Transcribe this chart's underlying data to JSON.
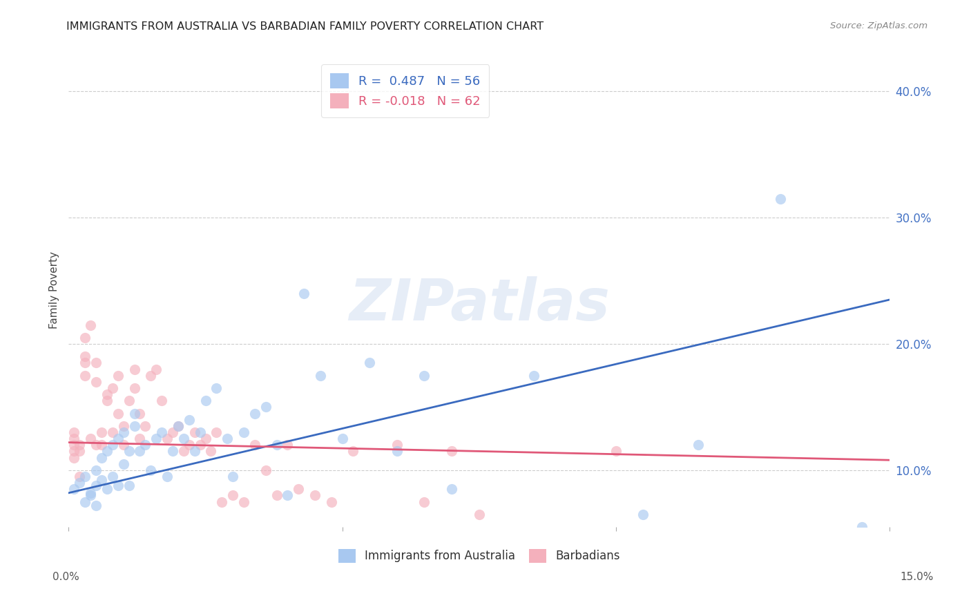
{
  "title": "IMMIGRANTS FROM AUSTRALIA VS BARBADIAN FAMILY POVERTY CORRELATION CHART",
  "source": "Source: ZipAtlas.com",
  "ylabel": "Family Poverty",
  "xlim": [
    0.0,
    0.15
  ],
  "ylim": [
    0.055,
    0.43
  ],
  "legend_1_label": "R =  0.487   N = 56",
  "legend_2_label": "R = -0.018   N = 62",
  "legend_1_series": "Immigrants from Australia",
  "legend_2_series": "Barbadians",
  "blue_color": "#a8c8f0",
  "pink_color": "#f4b0bc",
  "blue_line_color": "#3a6abf",
  "pink_line_color": "#e05878",
  "watermark": "ZIPatlas",
  "blue_line_x": [
    0.0,
    0.15
  ],
  "blue_line_y": [
    0.082,
    0.235
  ],
  "pink_line_x": [
    0.0,
    0.15
  ],
  "pink_line_y": [
    0.122,
    0.108
  ],
  "y_tick_positions": [
    0.1,
    0.2,
    0.3,
    0.4
  ],
  "y_tick_labels_right": [
    "10.0%",
    "20.0%",
    "30.0%",
    "40.0%"
  ],
  "x_tick_positions": [
    0.0,
    0.05,
    0.1,
    0.15
  ],
  "blue_x": [
    0.001,
    0.002,
    0.003,
    0.003,
    0.004,
    0.004,
    0.005,
    0.005,
    0.005,
    0.006,
    0.006,
    0.007,
    0.007,
    0.008,
    0.008,
    0.009,
    0.009,
    0.01,
    0.01,
    0.011,
    0.011,
    0.012,
    0.012,
    0.013,
    0.014,
    0.015,
    0.016,
    0.017,
    0.018,
    0.019,
    0.02,
    0.021,
    0.022,
    0.023,
    0.024,
    0.025,
    0.027,
    0.029,
    0.03,
    0.032,
    0.034,
    0.036,
    0.038,
    0.04,
    0.043,
    0.046,
    0.05,
    0.055,
    0.06,
    0.065,
    0.07,
    0.085,
    0.105,
    0.115,
    0.13,
    0.145
  ],
  "blue_y": [
    0.085,
    0.09,
    0.075,
    0.095,
    0.082,
    0.08,
    0.088,
    0.072,
    0.1,
    0.092,
    0.11,
    0.085,
    0.115,
    0.12,
    0.095,
    0.088,
    0.125,
    0.105,
    0.13,
    0.115,
    0.088,
    0.145,
    0.135,
    0.115,
    0.12,
    0.1,
    0.125,
    0.13,
    0.095,
    0.115,
    0.135,
    0.125,
    0.14,
    0.115,
    0.13,
    0.155,
    0.165,
    0.125,
    0.095,
    0.13,
    0.145,
    0.15,
    0.12,
    0.08,
    0.24,
    0.175,
    0.125,
    0.185,
    0.115,
    0.175,
    0.085,
    0.175,
    0.065,
    0.12,
    0.315,
    0.055
  ],
  "pink_x": [
    0.001,
    0.001,
    0.001,
    0.001,
    0.001,
    0.002,
    0.002,
    0.002,
    0.003,
    0.003,
    0.003,
    0.003,
    0.004,
    0.004,
    0.005,
    0.005,
    0.005,
    0.006,
    0.006,
    0.007,
    0.007,
    0.008,
    0.008,
    0.009,
    0.009,
    0.01,
    0.01,
    0.011,
    0.012,
    0.012,
    0.013,
    0.013,
    0.014,
    0.015,
    0.016,
    0.017,
    0.018,
    0.019,
    0.02,
    0.021,
    0.022,
    0.023,
    0.024,
    0.025,
    0.026,
    0.027,
    0.028,
    0.03,
    0.032,
    0.034,
    0.036,
    0.038,
    0.04,
    0.042,
    0.045,
    0.048,
    0.052,
    0.06,
    0.065,
    0.07,
    0.075,
    0.1
  ],
  "pink_y": [
    0.115,
    0.12,
    0.125,
    0.13,
    0.11,
    0.115,
    0.12,
    0.095,
    0.205,
    0.19,
    0.185,
    0.175,
    0.125,
    0.215,
    0.17,
    0.185,
    0.12,
    0.12,
    0.13,
    0.155,
    0.16,
    0.165,
    0.13,
    0.145,
    0.175,
    0.12,
    0.135,
    0.155,
    0.165,
    0.18,
    0.125,
    0.145,
    0.135,
    0.175,
    0.18,
    0.155,
    0.125,
    0.13,
    0.135,
    0.115,
    0.12,
    0.13,
    0.12,
    0.125,
    0.115,
    0.13,
    0.075,
    0.08,
    0.075,
    0.12,
    0.1,
    0.08,
    0.12,
    0.085,
    0.08,
    0.075,
    0.115,
    0.12,
    0.075,
    0.115,
    0.065,
    0.115
  ]
}
